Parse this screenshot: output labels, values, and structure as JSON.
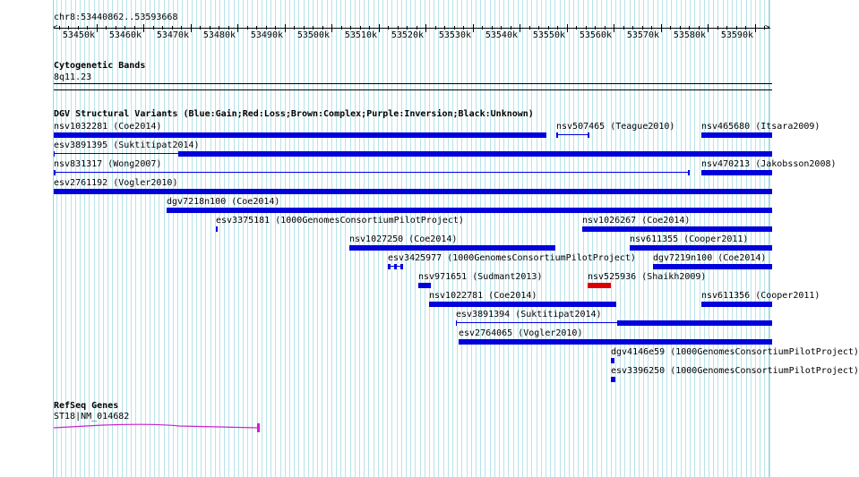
{
  "ruler": {
    "position": "chr8:53440862..53593668",
    "ticks": [
      "53450k",
      "53460k",
      "53470k",
      "53480k",
      "53490k",
      "53500k",
      "53510k",
      "53520k",
      "53530k",
      "53540k",
      "53550k",
      "53560k",
      "53570k",
      "53580k",
      "53590k"
    ]
  },
  "cytoband": {
    "title": "Cytogenetic Bands",
    "band": "8q11.23"
  },
  "dgv": {
    "title": "DGV Structural Variants (Blue:Gain;Red:Loss;Brown:Complex;Purple:Inversion;Black:Unknown)",
    "features": [
      {
        "label": "nsv1032281 (Coe2014)",
        "start": 53440862,
        "end": 53545600,
        "color": "#0000dd",
        "row": 0
      },
      {
        "label": "nsv507465 (Teague2010)",
        "start": 53547800,
        "end": 53554400,
        "color": "#0000dd",
        "row": 0,
        "style": "interval"
      },
      {
        "label": "nsv465680 (Itsara2009)",
        "start": 53578600,
        "end": 53593668,
        "color": "#0000dd",
        "row": 0
      },
      {
        "label": "esv3891395 (Suktitipat2014)",
        "start": 53467400,
        "end": 53593668,
        "color": "#0000dd",
        "row": 1,
        "thin_from": 53440862
      },
      {
        "label": "nsv831317 (Wong2007)",
        "start": 53440862,
        "end": 53575800,
        "color": "#0000dd",
        "row": 2,
        "style": "interval"
      },
      {
        "label": "nsv470213 (Jakobsson2008)",
        "start": 53578600,
        "end": 53593668,
        "color": "#0000dd",
        "row": 2
      },
      {
        "label": "esv2761192 (Vogler2010)",
        "start": 53440862,
        "end": 53593668,
        "color": "#0000dd",
        "row": 3
      },
      {
        "label": "dgv7218n100 (Coe2014)",
        "start": 53464800,
        "end": 53593668,
        "color": "#0000dd",
        "row": 4
      },
      {
        "label": "esv3375181 (1000GenomesConsortiumPilotProject)",
        "start": 53475400,
        "end": 53475700,
        "color": "#0000dd",
        "row": 5
      },
      {
        "label": "nsv1026267 (Coe2014)",
        "start": 53553200,
        "end": 53593668,
        "color": "#0000dd",
        "row": 5
      },
      {
        "label": "nsv1027250 (Coe2014)",
        "start": 53503800,
        "end": 53547600,
        "color": "#0000dd",
        "row": 6
      },
      {
        "label": "nsv611355 (Cooper2011)",
        "start": 53563400,
        "end": 53593668,
        "color": "#0000dd",
        "row": 6
      },
      {
        "label": "esv3425977 (1000GenomesConsortiumPilotProject)",
        "start": 53512000,
        "end": 53515200,
        "color": "#0000dd",
        "row": 7,
        "style": "blocks"
      },
      {
        "label": "dgv7219n100 (Coe2014)",
        "start": 53568400,
        "end": 53593668,
        "color": "#0000dd",
        "row": 7
      },
      {
        "label": "nsv971651 (Sudmant2013)",
        "start": 53518400,
        "end": 53521000,
        "color": "#0000dd",
        "row": 8
      },
      {
        "label": "nsv525936 (Shaikh2009)",
        "start": 53554400,
        "end": 53559400,
        "color": "#dd0000",
        "row": 8
      },
      {
        "label": "nsv1022781 (Coe2014)",
        "start": 53520600,
        "end": 53560600,
        "color": "#0000dd",
        "row": 9
      },
      {
        "label": "nsv611356 (Cooper2011)",
        "start": 53578600,
        "end": 53593668,
        "color": "#0000dd",
        "row": 9
      },
      {
        "label": "esv3891394 (Suktitipat2014)",
        "start": 53560800,
        "end": 53593668,
        "color": "#0000dd",
        "row": 10,
        "thin_from": 53526400
      },
      {
        "label": "esv2764065 (Vogler2010)",
        "start": 53527000,
        "end": 53593668,
        "color": "#0000dd",
        "row": 11
      },
      {
        "label": "dgv4146e59 (1000GenomesConsortiumPilotProject)",
        "start": 53559400,
        "end": 53560100,
        "color": "#0000dd",
        "row": 12
      },
      {
        "label": "esv3396250 (1000GenomesConsortiumPilotProject)",
        "start": 53559400,
        "end": 53560400,
        "color": "#0000dd",
        "row": 13
      }
    ]
  },
  "refseq": {
    "title": "RefSeq Genes",
    "gene_label": "ST18|NM_014682",
    "start": 53440862,
    "end": 53484600,
    "color": "#cc22cc"
  }
}
